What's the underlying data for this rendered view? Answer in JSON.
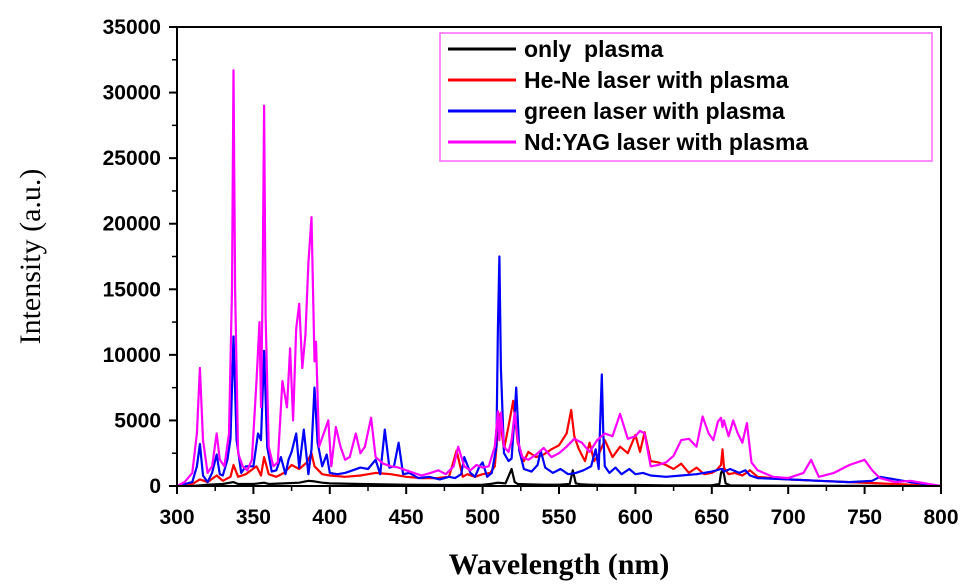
{
  "chart_data": {
    "type": "line",
    "title": "",
    "xlabel": "Wavelength (nm)",
    "ylabel": "Intensity (a.u.)",
    "xlim": [
      300,
      800
    ],
    "ylim": [
      0,
      35000
    ],
    "x_ticks": [
      300,
      350,
      400,
      450,
      500,
      550,
      600,
      650,
      700,
      750,
      800
    ],
    "y_ticks": [
      0,
      5000,
      10000,
      15000,
      20000,
      25000,
      30000,
      35000
    ],
    "grid": false,
    "legend_position": "top-right",
    "series": [
      {
        "name": "only  plasma",
        "color": "#000000",
        "x": [
          300,
          310,
          320,
          330,
          337,
          340,
          350,
          357,
          360,
          370,
          380,
          386,
          390,
          395,
          400,
          420,
          450,
          480,
          500,
          505,
          510,
          515,
          519,
          521,
          523,
          530,
          540,
          550,
          557,
          559,
          561,
          565,
          570,
          580,
          600,
          620,
          640,
          650,
          655,
          656,
          657,
          658,
          659,
          662,
          680,
          700,
          750,
          800
        ],
        "y": [
          0,
          0,
          100,
          150,
          300,
          150,
          150,
          250,
          150,
          200,
          250,
          400,
          350,
          250,
          200,
          150,
          100,
          80,
          100,
          150,
          250,
          200,
          1300,
          300,
          150,
          120,
          100,
          100,
          150,
          1200,
          200,
          120,
          100,
          80,
          80,
          50,
          50,
          50,
          150,
          1000,
          1200,
          900,
          200,
          50,
          30,
          20,
          10,
          0
        ]
      },
      {
        "name": "He-Ne laser with plasma",
        "color": "#ff0000",
        "x": [
          300,
          310,
          315,
          320,
          326,
          330,
          335,
          337,
          340,
          345,
          352,
          355,
          357,
          360,
          365,
          370,
          375,
          380,
          385,
          388,
          390,
          395,
          400,
          410,
          420,
          430,
          440,
          450,
          460,
          470,
          478,
          483,
          487,
          490,
          495,
          500,
          505,
          508,
          511,
          514,
          517,
          520,
          523,
          527,
          530,
          535,
          540,
          545,
          550,
          555,
          558,
          560,
          563,
          567,
          570,
          573,
          576,
          580,
          585,
          590,
          595,
          600,
          603,
          606,
          610,
          615,
          620,
          625,
          630,
          635,
          640,
          645,
          650,
          653,
          656,
          657,
          658,
          661,
          665,
          670,
          675,
          680,
          690,
          700,
          720,
          740,
          760,
          780,
          800
        ],
        "y": [
          0,
          150,
          500,
          300,
          800,
          400,
          700,
          1600,
          700,
          900,
          1500,
          800,
          2200,
          900,
          700,
          1000,
          1600,
          1300,
          1800,
          2500,
          1500,
          900,
          800,
          700,
          800,
          1000,
          900,
          700,
          600,
          600,
          700,
          2700,
          700,
          900,
          700,
          900,
          1000,
          1500,
          5500,
          2800,
          4600,
          6500,
          3300,
          1900,
          2600,
          2200,
          2400,
          2800,
          3100,
          4000,
          5800,
          3800,
          2800,
          1900,
          3300,
          1900,
          2400,
          3500,
          2200,
          3000,
          2500,
          3900,
          2600,
          4100,
          1900,
          1800,
          1600,
          1300,
          1700,
          1000,
          1400,
          900,
          1000,
          1200,
          1600,
          2800,
          1400,
          900,
          1000,
          800,
          1200,
          700,
          600,
          500,
          400,
          300,
          200,
          100,
          0
        ]
      },
      {
        "name": "green laser with plasma",
        "color": "#0000ff",
        "x": [
          300,
          310,
          313,
          315,
          317,
          320,
          323,
          326,
          328,
          330,
          333,
          335,
          337,
          339,
          342,
          345,
          350,
          353,
          355,
          357,
          359,
          362,
          365,
          368,
          371,
          373,
          375,
          378,
          380,
          383,
          386,
          388,
          390,
          392,
          395,
          398,
          400,
          405,
          410,
          415,
          420,
          425,
          430,
          433,
          436,
          439,
          442,
          445,
          448,
          452,
          458,
          465,
          472,
          478,
          482,
          486,
          488,
          492,
          495,
          498,
          500,
          503,
          506,
          509,
          510,
          511,
          512,
          514,
          517,
          519,
          521,
          522,
          524,
          527,
          532,
          536,
          538,
          541,
          546,
          551,
          556,
          561,
          566,
          571,
          574,
          576,
          578,
          579,
          580,
          583,
          587,
          591,
          596,
          600,
          605,
          610,
          620,
          630,
          640,
          650,
          656,
          657,
          658,
          662,
          668,
          672,
          675,
          680,
          700,
          720,
          740,
          755,
          760,
          780,
          800
        ],
        "y": [
          0,
          300,
          1500,
          3200,
          800,
          300,
          1000,
          2400,
          900,
          800,
          2000,
          3600,
          11400,
          3500,
          1000,
          1500,
          1500,
          4000,
          3500,
          10300,
          3000,
          1100,
          1200,
          2200,
          900,
          2000,
          2600,
          4000,
          1400,
          4300,
          900,
          2800,
          7500,
          3300,
          1500,
          2400,
          1000,
          900,
          1000,
          1200,
          1400,
          1300,
          2000,
          900,
          4300,
          1400,
          1500,
          3300,
          900,
          1000,
          600,
          700,
          500,
          700,
          600,
          900,
          2200,
          1000,
          700,
          1500,
          1800,
          700,
          1000,
          3000,
          12000,
          17500,
          9000,
          2500,
          1900,
          2100,
          5500,
          7500,
          2700,
          1300,
          1100,
          1600,
          2700,
          1400,
          1000,
          1300,
          900,
          1000,
          1200,
          1500,
          2800,
          1300,
          8500,
          4000,
          1500,
          1000,
          1400,
          900,
          1300,
          900,
          1000,
          800,
          700,
          800,
          900,
          1100,
          1300,
          1300,
          1100,
          1300,
          1000,
          1200,
          800,
          600,
          500,
          400,
          300,
          400,
          700,
          300,
          0
        ]
      },
      {
        "name": "Nd:YAG laser with plasma",
        "color": "#ff00ff",
        "x": [
          300,
          305,
          310,
          313,
          315,
          317,
          320,
          323,
          326,
          328,
          331,
          334,
          336,
          337,
          338,
          340,
          343,
          346,
          349,
          352,
          354,
          355,
          356,
          357,
          358,
          360,
          363,
          366,
          369,
          372,
          374,
          376,
          378,
          380,
          382,
          384,
          386,
          388,
          390,
          391,
          393,
          396,
          399,
          401,
          404,
          407,
          410,
          413,
          417,
          420,
          423,
          427,
          430,
          435,
          440,
          445,
          450,
          455,
          460,
          466,
          471,
          476,
          481,
          484,
          488,
          492,
          496,
          500,
          504,
          508,
          510,
          511,
          512,
          514,
          517,
          519,
          521,
          523,
          526,
          530,
          535,
          540,
          545,
          550,
          555,
          560,
          565,
          570,
          575,
          580,
          585,
          590,
          595,
          600,
          603,
          606,
          610,
          615,
          620,
          625,
          630,
          635,
          640,
          644,
          648,
          651,
          654,
          656,
          657,
          658,
          661,
          664,
          667,
          670,
          673,
          676,
          680,
          690,
          700,
          710,
          715,
          720,
          730,
          740,
          750,
          755,
          760,
          770,
          780,
          790,
          800
        ],
        "y": [
          0,
          300,
          1000,
          4000,
          9000,
          3500,
          1000,
          1500,
          4000,
          2000,
          1500,
          4000,
          15000,
          31700,
          15000,
          2500,
          1500,
          1200,
          2000,
          8000,
          12500,
          6000,
          15000,
          29000,
          13000,
          3000,
          1500,
          1800,
          8000,
          6000,
          10500,
          5000,
          12000,
          13900,
          9000,
          11500,
          17000,
          20500,
          9500,
          11000,
          3000,
          4000,
          5000,
          1500,
          4500,
          3000,
          2000,
          2200,
          4000,
          2500,
          3000,
          5200,
          2200,
          1700,
          1500,
          1400,
          1200,
          1000,
          800,
          1000,
          1200,
          900,
          1500,
          3000,
          1500,
          1200,
          1600,
          1400,
          1500,
          3000,
          5700,
          3500,
          5600,
          3000,
          2600,
          3500,
          5600,
          3500,
          2200,
          2000,
          2400,
          2900,
          2200,
          2500,
          3000,
          3600,
          3300,
          2600,
          3500,
          4000,
          3800,
          5500,
          3600,
          3800,
          4200,
          4000,
          1500,
          1600,
          1800,
          2300,
          3500,
          3600,
          3000,
          5300,
          4000,
          3500,
          4900,
          5200,
          4500,
          5000,
          3800,
          5000,
          4000,
          3300,
          4800,
          1800,
          1200,
          700,
          600,
          1000,
          2000,
          700,
          1000,
          1600,
          2000,
          1200,
          600,
          300,
          400,
          200,
          0
        ]
      }
    ]
  }
}
